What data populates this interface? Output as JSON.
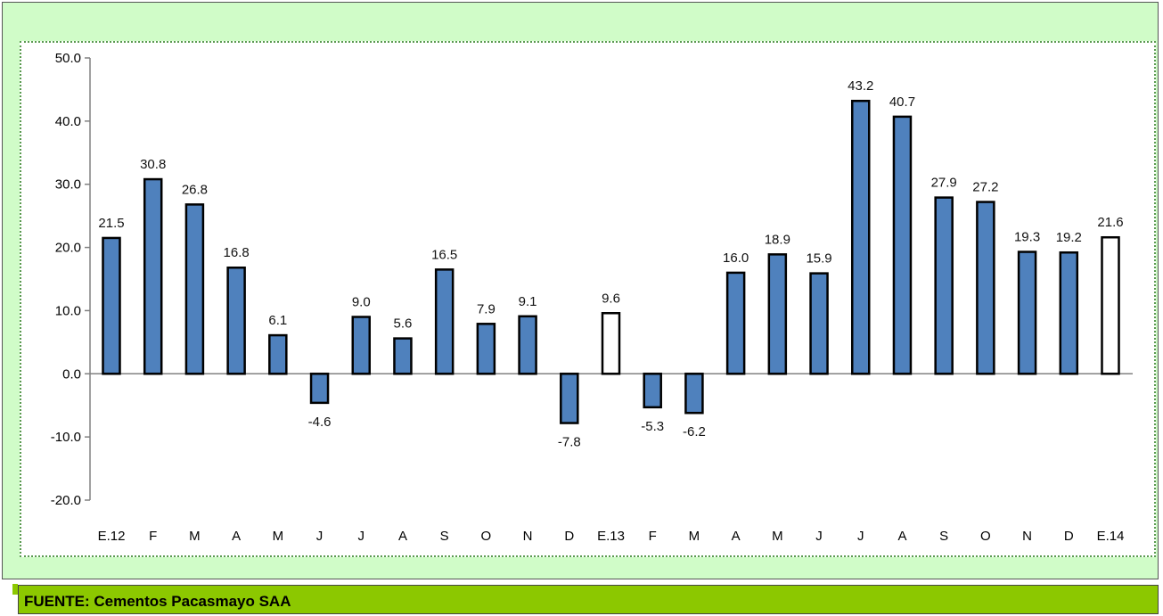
{
  "chart_data": {
    "type": "bar",
    "categories": [
      "E.12",
      "F",
      "M",
      "A",
      "M",
      "J",
      "J",
      "A",
      "S",
      "O",
      "N",
      "D",
      "E.13",
      "F",
      "M",
      "A",
      "M",
      "J",
      "J",
      "A",
      "S",
      "O",
      "N",
      "D",
      "E.14"
    ],
    "values": [
      21.5,
      30.8,
      26.8,
      16.8,
      6.1,
      -4.6,
      9.0,
      5.6,
      16.5,
      7.9,
      9.1,
      -7.8,
      9.6,
      -5.3,
      -6.2,
      16.0,
      18.9,
      15.9,
      43.2,
      40.7,
      27.9,
      27.2,
      19.3,
      19.2,
      21.6
    ],
    "highlighted": [
      12,
      24
    ],
    "ylim": [
      -20,
      50
    ],
    "yticks": [
      "50.0",
      "40.0",
      "30.0",
      "20.0",
      "10.0",
      "0.0",
      "-10.0",
      "-20.0"
    ],
    "ytick_values": [
      50,
      40,
      30,
      20,
      10,
      0,
      -10,
      -20
    ],
    "bar_color": "#4f81bd",
    "highlight_color": "#ffffff",
    "title": "",
    "xlabel": "",
    "ylabel": "",
    "legend": "none",
    "grid": false
  },
  "source": {
    "text": "FUENTE: Cementos Pacasmayo SAA"
  },
  "colors": {
    "frame_background": "#d0fcc8",
    "source_bar": "#8cc800"
  }
}
